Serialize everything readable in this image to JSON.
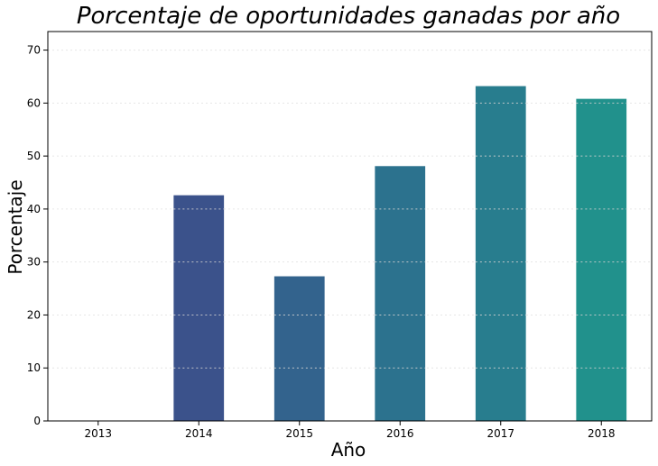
{
  "chart_data": {
    "type": "bar",
    "title": "Porcentaje de oportunidades ganadas por año",
    "xlabel": "Año",
    "ylabel": "Porcentaje",
    "categories": [
      "2013",
      "2014",
      "2015",
      "2016",
      "2017",
      "2018"
    ],
    "values": [
      0,
      42.6,
      27.3,
      48.1,
      63.2,
      60.8
    ],
    "colors": [
      "#414487",
      "#3b528b",
      "#33638d",
      "#2c728e",
      "#287d8e",
      "#21918c"
    ],
    "ylim": [
      0,
      73.5
    ],
    "yticks": [
      0,
      10,
      20,
      30,
      40,
      50,
      60,
      70
    ],
    "grid": "y-dotted",
    "legend": "none"
  }
}
